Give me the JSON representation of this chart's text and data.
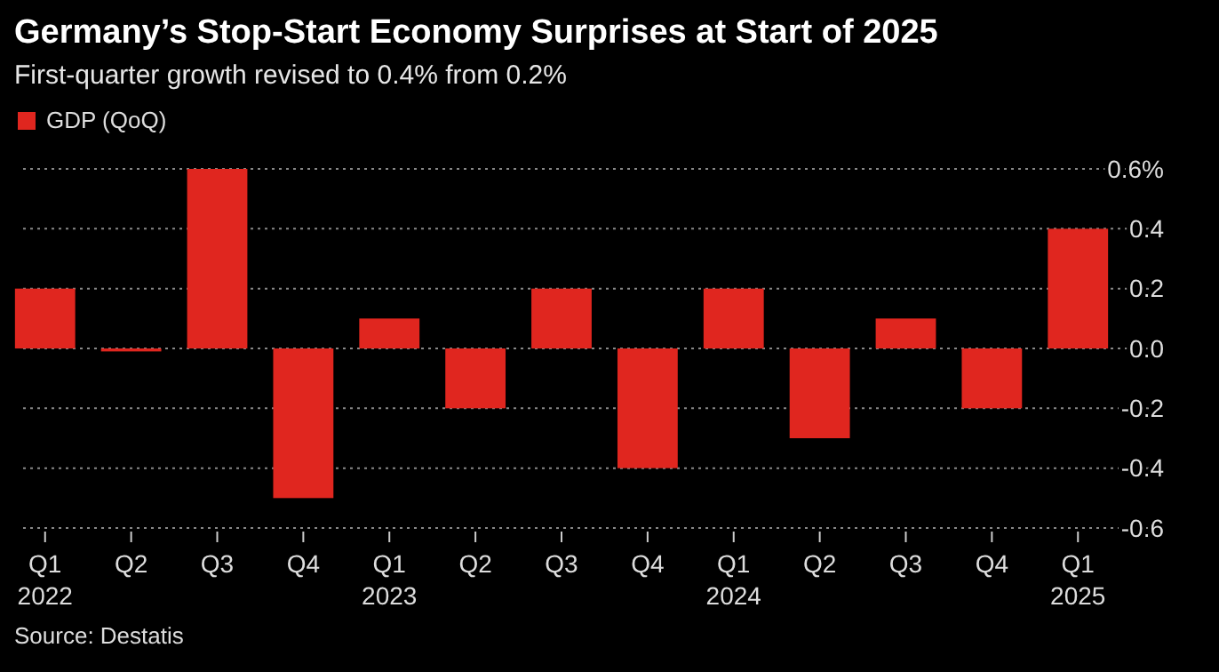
{
  "chart_data": {
    "type": "bar",
    "title": "Germany’s Stop-Start Economy Surprises at Start of 2025",
    "subtitle": "First-quarter growth revised to 0.4% from 0.2%",
    "categories": [
      "Q1\n2022",
      "Q2",
      "Q3",
      "Q4",
      "Q1\n2023",
      "Q2",
      "Q3",
      "Q4",
      "Q1\n2024",
      "Q2",
      "Q3",
      "Q4",
      "Q1\n2025"
    ],
    "series": [
      {
        "name": "GDP (QoQ)",
        "color": "#e0261f",
        "values": [
          0.2,
          -0.01,
          0.6,
          -0.5,
          0.1,
          -0.2,
          0.2,
          -0.4,
          0.2,
          -0.3,
          0.1,
          -0.2,
          0.4
        ]
      }
    ],
    "ylim": [
      -0.6,
      0.6
    ],
    "yticks": [
      {
        "value": 0.6,
        "label": "0.6%"
      },
      0.4,
      0.2,
      {
        "value": 0,
        "label": "0.0"
      },
      -0.2,
      -0.4,
      -0.6
    ],
    "grid": "y",
    "legend": "top left",
    "annotations": [
      "Source: Destatis"
    ]
  }
}
